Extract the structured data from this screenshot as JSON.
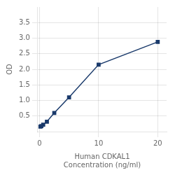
{
  "chart_data": {
    "type": "line",
    "x": [
      0.156,
      0.313,
      0.625,
      1.25,
      2.5,
      5,
      10,
      20
    ],
    "values": [
      0.158,
      0.175,
      0.22,
      0.32,
      0.6,
      1.1,
      2.15,
      2.88
    ],
    "color": "#1a3a6b",
    "marker": "square",
    "xlabel": "Human CDKAL1\nConcentration (ng/ml)",
    "ylabel": "OD",
    "xlim": [
      -0.3,
      21.5
    ],
    "ylim": [
      0,
      4.0
    ],
    "xticks": [
      0,
      10,
      20
    ],
    "yticks": [
      0.5,
      {
        "value": 1,
        "label": "1.0"
      },
      1.5,
      {
        "value": 2,
        "label": "2.0"
      },
      2.5,
      {
        "value": 3,
        "label": "3.0"
      },
      3.5
    ],
    "grid": true
  }
}
